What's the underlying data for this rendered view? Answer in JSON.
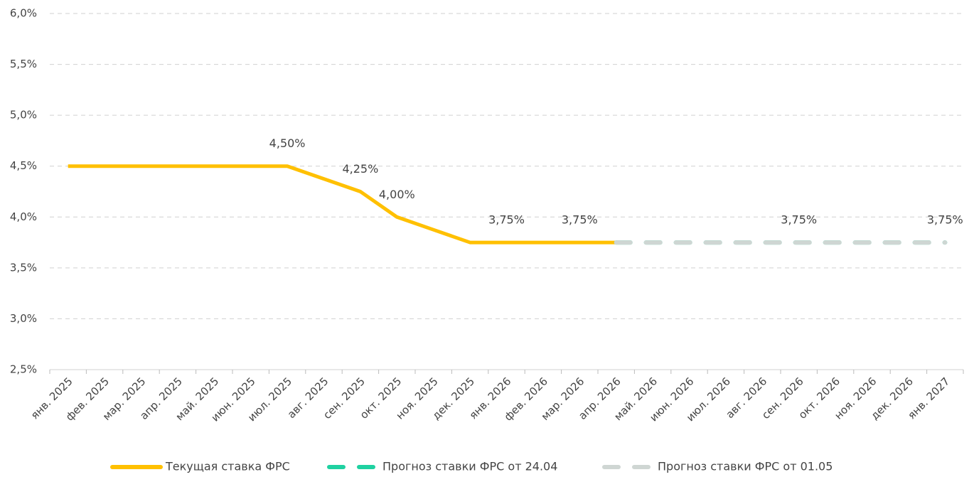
{
  "chart_data": {
    "type": "line",
    "categories": [
      "янв. 2025",
      "фев. 2025",
      "мар. 2025",
      "апр. 2025",
      "май. 2025",
      "июн. 2025",
      "июл. 2025",
      "авг. 2025",
      "сен. 2025",
      "окт. 2025",
      "ноя. 2025",
      "дек. 2025",
      "янв. 2026",
      "фев. 2026",
      "мар. 2026",
      "апр. 2026",
      "май. 2026",
      "июн. 2026",
      "июл. 2026",
      "авг. 2026",
      "сен. 2026",
      "окт. 2026",
      "ноя. 2026",
      "дек. 2026",
      "янв. 2027"
    ],
    "series": [
      {
        "name": "Текущая ставка ФРС",
        "color": "#ffc000",
        "dashed": false,
        "values": [
          4.5,
          4.5,
          4.5,
          4.5,
          4.5,
          4.5,
          4.5,
          4.375,
          4.25,
          4.0,
          3.875,
          3.75,
          3.75,
          3.75,
          3.75,
          3.75,
          null,
          null,
          null,
          null,
          null,
          null,
          null,
          null,
          null
        ],
        "value_labels": [
          null,
          null,
          null,
          null,
          null,
          null,
          "4,50%",
          null,
          "4,25%",
          "4,00%",
          null,
          null,
          "3,75%",
          null,
          "3,75%",
          null,
          null,
          null,
          null,
          null,
          null,
          null,
          null,
          null,
          null
        ]
      },
      {
        "name": "Прогноз ставки ФРС от 24.04",
        "color": "#1fd1a1",
        "dashed": true,
        "values": [
          null,
          null,
          null,
          null,
          null,
          null,
          null,
          null,
          null,
          null,
          null,
          null,
          null,
          null,
          null,
          3.75,
          3.75,
          3.75,
          3.75,
          3.75,
          3.75,
          3.75,
          3.75,
          3.75,
          3.75
        ]
      },
      {
        "name": "Прогноз ставки ФРС от 01.05",
        "color": "#cfd6d3",
        "dashed": true,
        "values": [
          null,
          null,
          null,
          null,
          null,
          null,
          null,
          null,
          null,
          null,
          null,
          null,
          null,
          null,
          null,
          3.75,
          3.75,
          3.75,
          3.75,
          3.75,
          3.75,
          3.75,
          3.75,
          3.75,
          3.75
        ],
        "value_labels": [
          null,
          null,
          null,
          null,
          null,
          null,
          null,
          null,
          null,
          null,
          null,
          null,
          null,
          null,
          null,
          null,
          null,
          null,
          null,
          null,
          "3,75%",
          null,
          null,
          null,
          "3,75%"
        ]
      }
    ],
    "ylim": [
      2.5,
      6.0
    ],
    "yticks": [
      {
        "value": 2.5,
        "label": "2,5%"
      },
      {
        "value": 3.0,
        "label": "3,0%"
      },
      {
        "value": 3.5,
        "label": "3,5%"
      },
      {
        "value": 4.0,
        "label": "4,0%"
      },
      {
        "value": 4.5,
        "label": "4,5%"
      },
      {
        "value": 5.0,
        "label": "5,0%"
      },
      {
        "value": 5.5,
        "label": "5,5%"
      },
      {
        "value": 6.0,
        "label": "6,0%"
      }
    ],
    "grid": true,
    "legend": "bottom"
  }
}
